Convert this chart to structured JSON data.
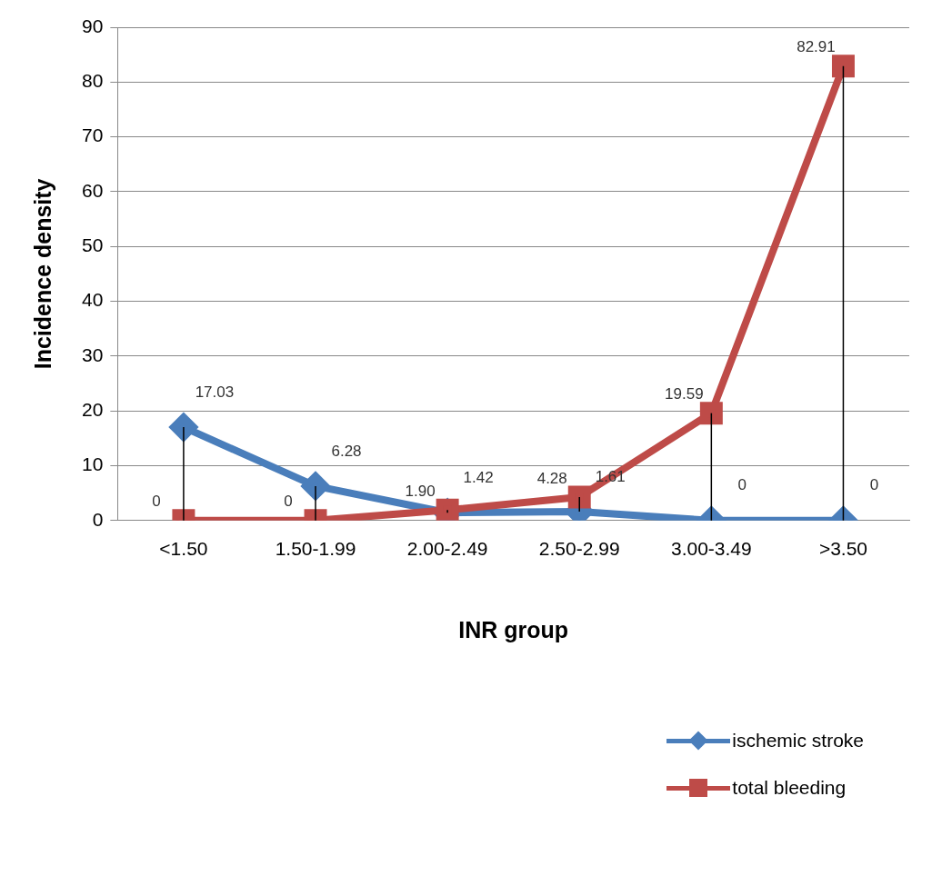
{
  "chart_data": {
    "type": "line",
    "xlabel": "INR group",
    "ylabel": "Incidence density",
    "categories": [
      "<1.50",
      "1.50-1.99",
      "2.00-2.49",
      "2.50-2.99",
      "3.00-3.49",
      ">3.50"
    ],
    "series": [
      {
        "name": "ischemic stroke",
        "color": "#4a7ebb",
        "marker": "diamond",
        "values": [
          17.03,
          6.28,
          1.42,
          1.61,
          0,
          0
        ],
        "errors": [
          [
            0,
            17.03
          ],
          [
            0,
            6.28
          ],
          [
            1.42,
            1.9
          ],
          [
            1.61,
            4.28
          ],
          [
            0,
            19.59
          ],
          [
            0,
            82.91
          ]
        ],
        "value_labels": [
          "17.03",
          "6.28",
          "1.42",
          "1.61",
          "0",
          "0"
        ]
      },
      {
        "name": "total bleeding",
        "color": "#be4b48",
        "marker": "square",
        "values": [
          0,
          0,
          1.9,
          4.28,
          19.59,
          82.91
        ],
        "value_labels": [
          "0",
          "0",
          "1.90",
          "4.28",
          "19.59",
          "82.91"
        ]
      }
    ],
    "ylim": [
      0,
      90
    ],
    "yticks": [
      0,
      10,
      20,
      30,
      40,
      50,
      60,
      70,
      80,
      90
    ],
    "grid": "y",
    "legend": "bottom right",
    "line_style": "solid"
  }
}
